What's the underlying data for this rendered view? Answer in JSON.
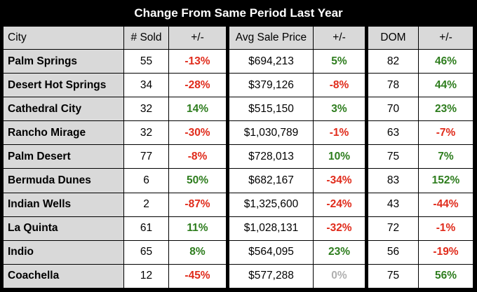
{
  "colors": {
    "positive": "#2e7d1e",
    "negative": "#e02b1b",
    "neutral": "#b0b0b0",
    "header_bg": "#000000",
    "label_bg": "#d9d9d9"
  },
  "chart_data": {
    "type": "table",
    "title": "Change From Same Period Last Year",
    "columns": [
      "City",
      "# Sold",
      "+/-",
      "Avg Sale Price",
      "+/-",
      "DOM",
      "+/-"
    ],
    "rows": [
      {
        "city": "Palm Springs",
        "sold": "55",
        "sold_chg": "-13%",
        "price": "$694,213",
        "price_chg": "5%",
        "dom": "82",
        "dom_chg": "46%"
      },
      {
        "city": "Desert Hot Springs",
        "sold": "34",
        "sold_chg": "-28%",
        "price": "$379,126",
        "price_chg": "-8%",
        "dom": "78",
        "dom_chg": "44%"
      },
      {
        "city": "Cathedral City",
        "sold": "32",
        "sold_chg": "14%",
        "price": "$515,150",
        "price_chg": "3%",
        "dom": "70",
        "dom_chg": "23%"
      },
      {
        "city": "Rancho Mirage",
        "sold": "32",
        "sold_chg": "-30%",
        "price": "$1,030,789",
        "price_chg": "-1%",
        "dom": "63",
        "dom_chg": "-7%"
      },
      {
        "city": "Palm Desert",
        "sold": "77",
        "sold_chg": "-8%",
        "price": "$728,013",
        "price_chg": "10%",
        "dom": "75",
        "dom_chg": "7%"
      },
      {
        "city": "Bermuda Dunes",
        "sold": "6",
        "sold_chg": "50%",
        "price": "$682,167",
        "price_chg": "-34%",
        "dom": "83",
        "dom_chg": "152%"
      },
      {
        "city": "Indian Wells",
        "sold": "2",
        "sold_chg": "-87%",
        "price": "$1,325,600",
        "price_chg": "-24%",
        "dom": "43",
        "dom_chg": "-44%"
      },
      {
        "city": "La Quinta",
        "sold": "61",
        "sold_chg": "11%",
        "price": "$1,028,131",
        "price_chg": "-32%",
        "dom": "72",
        "dom_chg": "-1%"
      },
      {
        "city": "Indio",
        "sold": "65",
        "sold_chg": "8%",
        "price": "$564,095",
        "price_chg": "23%",
        "dom": "56",
        "dom_chg": "-19%"
      },
      {
        "city": "Coachella",
        "sold": "12",
        "sold_chg": "-45%",
        "price": "$577,288",
        "price_chg": "0%",
        "dom": "75",
        "dom_chg": "56%"
      }
    ]
  }
}
